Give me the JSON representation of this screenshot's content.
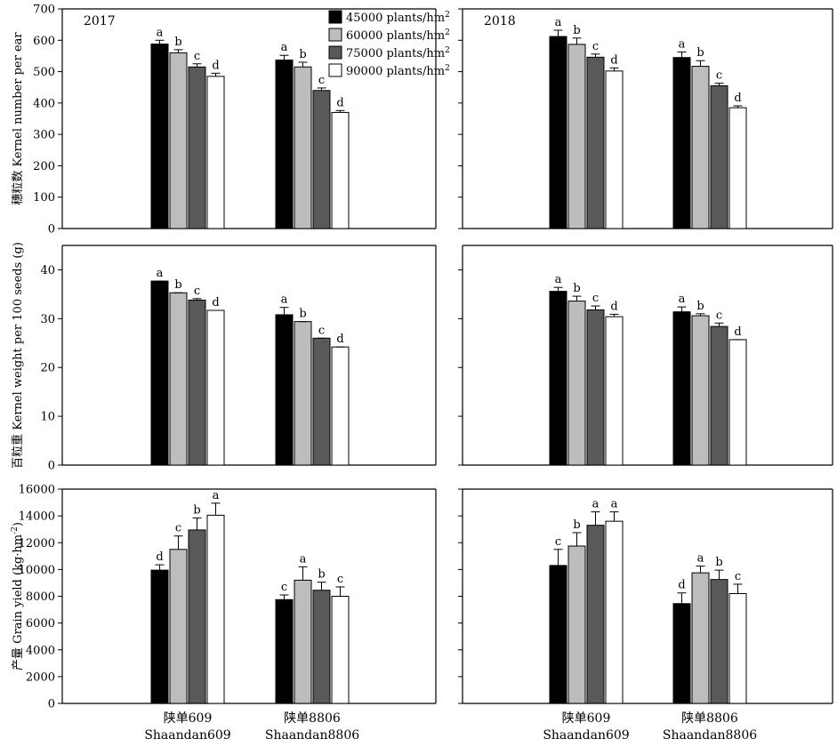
{
  "legend": [
    {
      "label": "45000 plants/hm",
      "sup": "2",
      "color": "#000000"
    },
    {
      "label": "60000 plants/hm",
      "sup": "2",
      "color": "#bdbdbd"
    },
    {
      "label": "75000 plants/hm",
      "sup": "2",
      "color": "#595959"
    },
    {
      "label": "90000 plants/hm",
      "sup": "2",
      "color": "#ffffff"
    }
  ],
  "x_categories": [
    {
      "cn": "陕单609",
      "en": "Shaandan609"
    },
    {
      "cn": "陕单8806",
      "en": "Shaandan8806"
    }
  ],
  "chart_data": [
    {
      "type": "bar",
      "row": 0,
      "col": 0,
      "year": "2017",
      "ylabel": "穗粒数 Kernel number per ear",
      "ylim": [
        0,
        700
      ],
      "yticks": [
        0,
        100,
        200,
        300,
        400,
        500,
        600,
        700
      ],
      "categories": [
        "陕单609",
        "陕单8806"
      ],
      "series": [
        {
          "values": [
            588,
            537
          ],
          "errors": [
            12,
            15
          ],
          "letters": [
            "a",
            "a"
          ]
        },
        {
          "values": [
            560,
            515
          ],
          "errors": [
            10,
            15
          ],
          "letters": [
            "b",
            "b"
          ]
        },
        {
          "values": [
            515,
            440
          ],
          "errors": [
            10,
            8
          ],
          "letters": [
            "c",
            "c"
          ]
        },
        {
          "values": [
            485,
            370
          ],
          "errors": [
            10,
            6
          ],
          "letters": [
            "d",
            "d"
          ]
        }
      ]
    },
    {
      "type": "bar",
      "row": 0,
      "col": 1,
      "year": "2018",
      "ylabel": "",
      "ylim": [
        0,
        700
      ],
      "yticks": [
        0,
        100,
        200,
        300,
        400,
        500,
        600,
        700
      ],
      "categories": [
        "陕单609",
        "陕单8806"
      ],
      "series": [
        {
          "values": [
            612,
            545
          ],
          "errors": [
            20,
            18
          ],
          "letters": [
            "a",
            "a"
          ]
        },
        {
          "values": [
            587,
            517
          ],
          "errors": [
            20,
            18
          ],
          "letters": [
            "b",
            "b"
          ]
        },
        {
          "values": [
            546,
            455
          ],
          "errors": [
            10,
            8
          ],
          "letters": [
            "c",
            "c"
          ]
        },
        {
          "values": [
            502,
            385
          ],
          "errors": [
            10,
            6
          ],
          "letters": [
            "d",
            "d"
          ]
        }
      ]
    },
    {
      "type": "bar",
      "row": 1,
      "col": 0,
      "ylabel": "百粒重 Kernel weight per 100 seeds (g)",
      "ylim": [
        0,
        45
      ],
      "yticks": [
        0,
        10,
        20,
        30,
        40
      ],
      "categories": [
        "陕单609",
        "陕单8806"
      ],
      "series": [
        {
          "values": [
            37.7,
            30.8
          ],
          "errors": [
            0.0,
            1.5
          ],
          "letters": [
            "a",
            "a"
          ]
        },
        {
          "values": [
            35.3,
            29.4
          ],
          "errors": [
            0.0,
            0.0
          ],
          "letters": [
            "b",
            "b"
          ]
        },
        {
          "values": [
            33.8,
            26.0
          ],
          "errors": [
            0.3,
            0.0
          ],
          "letters": [
            "c",
            "c"
          ]
        },
        {
          "values": [
            31.7,
            24.2
          ],
          "errors": [
            0.0,
            0.0
          ],
          "letters": [
            "d",
            "d"
          ]
        }
      ]
    },
    {
      "type": "bar",
      "row": 1,
      "col": 1,
      "ylabel": "",
      "ylim": [
        0,
        45
      ],
      "yticks": [
        0,
        10,
        20,
        30,
        40
      ],
      "categories": [
        "陕单609",
        "陕单8806"
      ],
      "series": [
        {
          "values": [
            35.6,
            31.4
          ],
          "errors": [
            0.8,
            1.0
          ],
          "letters": [
            "a",
            "a"
          ]
        },
        {
          "values": [
            33.6,
            30.6
          ],
          "errors": [
            1.0,
            0.4
          ],
          "letters": [
            "b",
            "b"
          ]
        },
        {
          "values": [
            31.8,
            28.4
          ],
          "errors": [
            0.8,
            0.7
          ],
          "letters": [
            "c",
            "c"
          ]
        },
        {
          "values": [
            30.4,
            25.7
          ],
          "errors": [
            0.5,
            0.0
          ],
          "letters": [
            "d",
            "d"
          ]
        }
      ]
    },
    {
      "type": "bar",
      "row": 2,
      "col": 0,
      "ylabel": "产量 Grain yield (kg·hm",
      "ylabel_sup": "-2",
      "ylabel_tail": ")",
      "ylim": [
        0,
        16000
      ],
      "yticks": [
        0,
        2000,
        4000,
        6000,
        8000,
        10000,
        12000,
        14000,
        16000
      ],
      "categories": [
        "陕单609",
        "陕单8806"
      ],
      "series": [
        {
          "values": [
            9950,
            7750
          ],
          "errors": [
            400,
            350
          ],
          "letters": [
            "d",
            "c"
          ]
        },
        {
          "values": [
            11500,
            9200
          ],
          "errors": [
            1000,
            1000
          ],
          "letters": [
            "c",
            "a"
          ]
        },
        {
          "values": [
            12950,
            8450
          ],
          "errors": [
            900,
            600
          ],
          "letters": [
            "b",
            "b"
          ]
        },
        {
          "values": [
            14050,
            8000
          ],
          "errors": [
            900,
            700
          ],
          "letters": [
            "a",
            "c"
          ]
        }
      ]
    },
    {
      "type": "bar",
      "row": 2,
      "col": 1,
      "ylabel": "",
      "ylim": [
        0,
        16000
      ],
      "yticks": [
        0,
        2000,
        4000,
        6000,
        8000,
        10000,
        12000,
        14000,
        16000
      ],
      "categories": [
        "陕单609",
        "陕单8806"
      ],
      "series": [
        {
          "values": [
            10300,
            7450
          ],
          "errors": [
            1200,
            800
          ],
          "letters": [
            "c",
            "d"
          ]
        },
        {
          "values": [
            11750,
            9750
          ],
          "errors": [
            1000,
            500
          ],
          "letters": [
            "b",
            "a"
          ]
        },
        {
          "values": [
            13300,
            9250
          ],
          "errors": [
            1000,
            700
          ],
          "letters": [
            "a",
            "b"
          ]
        },
        {
          "values": [
            13600,
            8200
          ],
          "errors": [
            700,
            700
          ],
          "letters": [
            "a",
            "c"
          ]
        }
      ]
    }
  ]
}
